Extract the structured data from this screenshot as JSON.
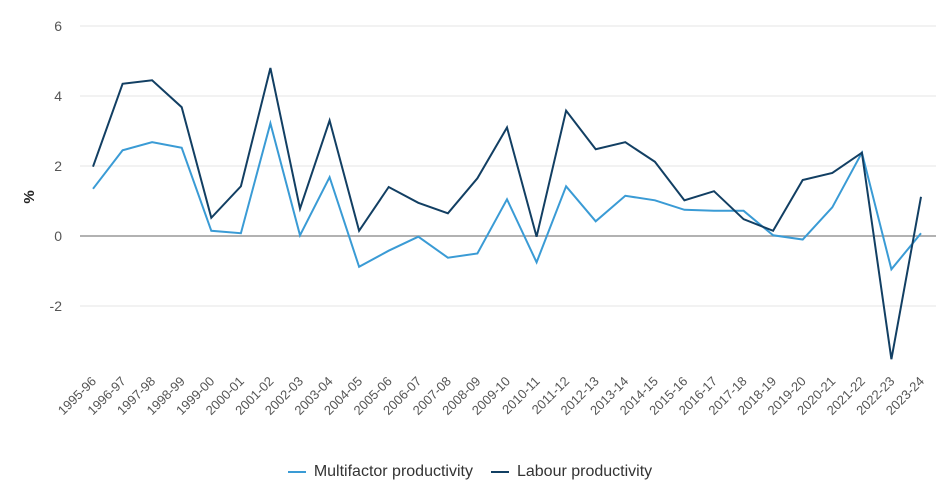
{
  "chart_data": {
    "type": "line",
    "ylabel": "%",
    "ylim": [
      -3.6,
      6
    ],
    "yticks": [
      6,
      4,
      2,
      0,
      -2
    ],
    "categories": [
      "1995-96",
      "1996-97",
      "1997-98",
      "1998-99",
      "1999-00",
      "2000-01",
      "2001-02",
      "2002-03",
      "2003-04",
      "2004-05",
      "2005-06",
      "2006-07",
      "2007-08",
      "2008-09",
      "2009-10",
      "2010-11",
      "2011-12",
      "2012-13",
      "2013-14",
      "2014-15",
      "2015-16",
      "2016-17",
      "2017-18",
      "2018-19",
      "2019-20",
      "2020-21",
      "2021-22",
      "2022-23",
      "2023-24"
    ],
    "series": [
      {
        "name": "Multifactor productivity",
        "color": "#3a9bd5",
        "values": [
          1.35,
          2.45,
          2.68,
          2.52,
          0.15,
          0.08,
          3.22,
          0.02,
          1.68,
          -0.88,
          -0.42,
          -0.02,
          -0.62,
          -0.5,
          1.05,
          -0.75,
          1.42,
          0.42,
          1.15,
          1.02,
          0.75,
          0.72,
          0.72,
          0.02,
          -0.1,
          0.82,
          2.38,
          -0.95,
          0.08
        ]
      },
      {
        "name": "Labour productivity",
        "color": "#123f63",
        "values": [
          1.98,
          4.35,
          4.45,
          3.68,
          0.52,
          1.42,
          4.8,
          0.78,
          3.3,
          0.15,
          1.4,
          0.95,
          0.65,
          1.65,
          3.1,
          -0.02,
          3.58,
          2.48,
          2.68,
          2.12,
          1.02,
          1.28,
          0.48,
          0.15,
          1.6,
          1.8,
          2.38,
          -3.52,
          1.12
        ]
      }
    ],
    "grid": true,
    "legend_position": "bottom-center"
  }
}
